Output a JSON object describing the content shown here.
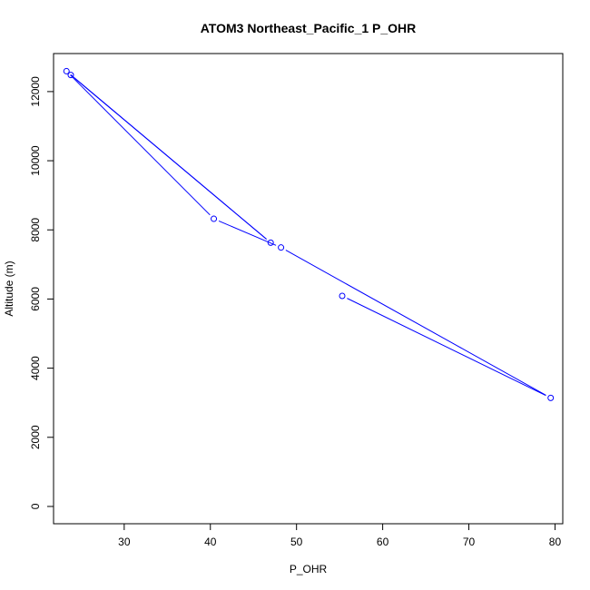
{
  "chart_data": {
    "type": "line",
    "title": "ATOM3 Northeast_Pacific_1 P_OHR",
    "xlabel": "P_OHR",
    "ylabel": "Altitude (m)",
    "xlim": [
      21.8,
      80.9
    ],
    "ylim": [
      -500,
      13100
    ],
    "xticks": [
      30,
      40,
      50,
      60,
      70,
      80
    ],
    "yticks": [
      0,
      2000,
      4000,
      6000,
      8000,
      10000,
      12000
    ],
    "grid": false,
    "legend": "none",
    "series": [
      {
        "color": "#0000ff",
        "marker": "open-circle",
        "x": [
          23.8,
          47.0,
          23.3,
          40.4,
          48.2,
          79.5,
          55.3
        ],
        "y": [
          12480,
          7630,
          12590,
          8320,
          7490,
          3140,
          6090
        ]
      }
    ]
  }
}
